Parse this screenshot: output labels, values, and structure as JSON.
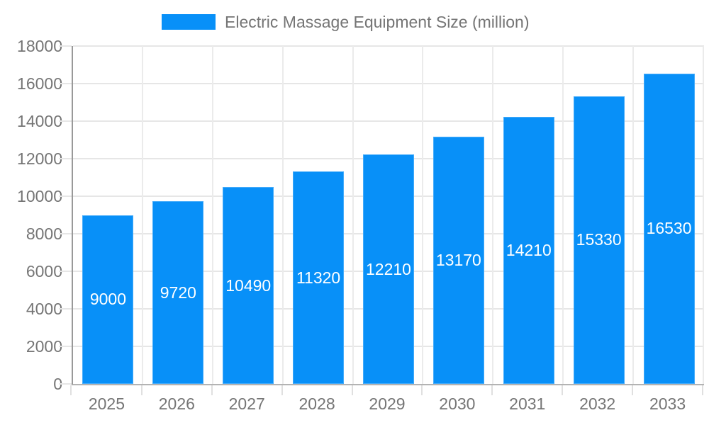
{
  "chart_data": {
    "type": "bar",
    "title": "Electric Massage Equipment Size (million)",
    "categories": [
      "2025",
      "2026",
      "2027",
      "2028",
      "2029",
      "2030",
      "2031",
      "2032",
      "2033"
    ],
    "values": [
      9000,
      9720,
      10490,
      11320,
      12210,
      13170,
      14210,
      15330,
      16530
    ],
    "series_name": "Electric Massage Equipment Size (million)",
    "xlabel": "",
    "ylabel": "",
    "ylim": [
      0,
      18000
    ],
    "ytick_step": 2000,
    "ytick_labels": [
      "0",
      "2000",
      "4000",
      "6000",
      "8000",
      "10000",
      "12000",
      "14000",
      "16000",
      "18000"
    ],
    "grid": "on",
    "legend_position": "top",
    "value_labels_position": "inside-center",
    "colors": {
      "bar": "#0890f8",
      "bar_label_text": "#ffffff",
      "axis_text": "#757575",
      "legend_text": "#757575",
      "gridline": "#e6e6e6",
      "y_axis_line": "#999999",
      "x_axis_line": "#b3b3b3",
      "background": "#ffffff"
    }
  }
}
